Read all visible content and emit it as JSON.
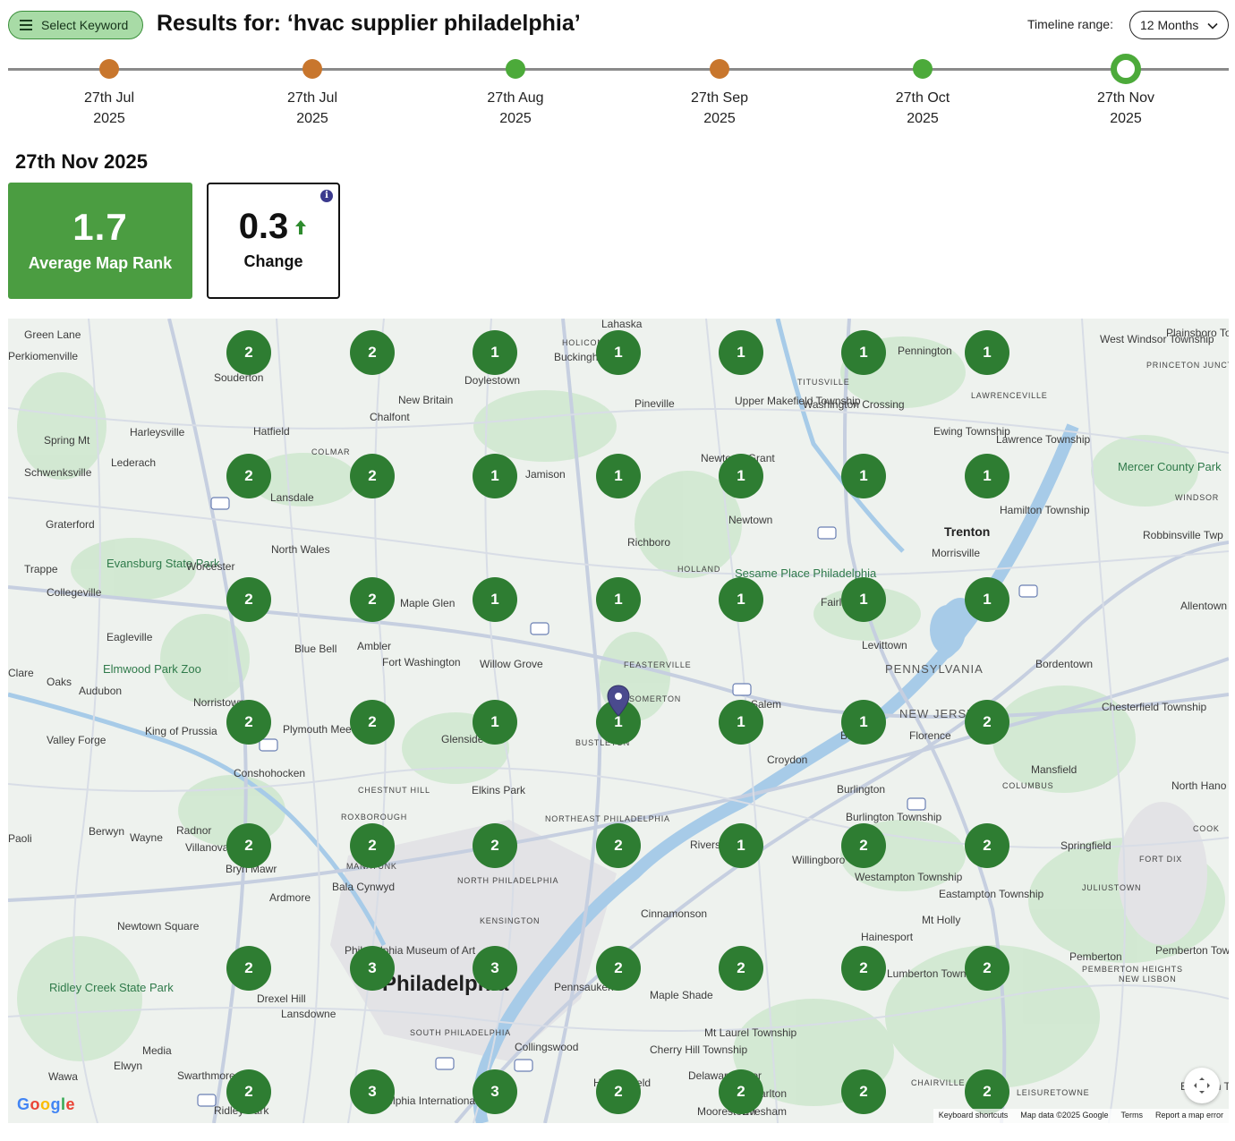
{
  "header": {
    "select_keyword_label": "Select Keyword",
    "title": "Results for: ‘hvac supplier philadelphia’",
    "timeline_range_label": "Timeline range:",
    "timeline_range_value": "12 Months"
  },
  "timeline": [
    {
      "day": "27th Jul",
      "year": "2025",
      "status": "decline",
      "color": "#c8762d",
      "selected": false
    },
    {
      "day": "27th Jul",
      "year": "2025",
      "status": "decline",
      "color": "#c8762d",
      "selected": false
    },
    {
      "day": "27th Aug",
      "year": "2025",
      "status": "improve",
      "color": "#4caa3a",
      "selected": false
    },
    {
      "day": "27th Sep",
      "year": "2025",
      "status": "decline",
      "color": "#c8762d",
      "selected": false
    },
    {
      "day": "27th Oct",
      "year": "2025",
      "status": "improve",
      "color": "#4caa3a",
      "selected": true
    },
    {
      "day": "27th Nov",
      "year": "2025",
      "status": "improve",
      "color": "#4caa3a",
      "selected": true
    }
  ],
  "selected_date": "27th Nov 2025",
  "stats": {
    "average_map_rank": "1.7",
    "average_map_rank_label": "Average Map Rank",
    "change": "0.3",
    "change_label": "Change",
    "change_direction": "up",
    "change_color": "#2e8b2e",
    "info_icon": "i"
  },
  "colors": {
    "marker": "#2e7d32",
    "rank_card": "#4b9d41",
    "pin": "#4a4a8e"
  },
  "map": {
    "grid": [
      [
        2,
        2,
        1,
        1,
        1,
        1,
        1
      ],
      [
        2,
        2,
        1,
        1,
        1,
        1,
        1
      ],
      [
        2,
        2,
        1,
        1,
        1,
        1,
        1
      ],
      [
        2,
        2,
        1,
        1,
        1,
        1,
        2
      ],
      [
        2,
        2,
        2,
        2,
        1,
        2,
        2
      ],
      [
        2,
        3,
        3,
        2,
        2,
        2,
        2
      ],
      [
        2,
        3,
        3,
        2,
        2,
        2,
        2
      ]
    ],
    "places": [
      "Green Lane",
      "Perkiomenville",
      "Souderton",
      "Doylestown",
      "Buckingham",
      "New Britain",
      "Chalfont",
      "Pineville",
      "Upper Makefield Township",
      "Washington Crossing",
      "Pennington",
      "West Windsor Township",
      "Plainsboro Township",
      "Harleysville",
      "Hatfield",
      "Spring Mt",
      "Lederach",
      "Schwenksville",
      "Lansdale",
      "Jamison",
      "Newtown",
      "Ewing Township",
      "Lawrence Township",
      "Mercer County Park",
      "Graterford",
      "North Wales",
      "Richboro",
      "Trenton",
      "Morrisville",
      "Hamilton Township",
      "Robbinsville Twp",
      "Trappe",
      "Evansburg State Park",
      "Worcester",
      "Collegeville",
      "Maple Glen",
      "Sesame Place Philadelphia",
      "Allentown",
      "Eagleville",
      "Blue Bell",
      "Ambler",
      "Fort Washington",
      "Willow Grove",
      "Levittown",
      "Bordentown",
      "Clare",
      "Oaks",
      "Audubon",
      "Elmwood Park Zoo",
      "Norristown",
      "PENNSYLVANIA",
      "King of Prussia",
      "Valley Forge",
      "Plymouth Meeting",
      "Glenside",
      "Croydon",
      "Chesterfield Township",
      "Florence",
      "NEW JERSEY",
      "Conshohocken",
      "Elkins Park",
      "Mansfield",
      "Burlington",
      "North Hano",
      "Berwyn",
      "Wayne",
      "Radnor",
      "Villanova",
      "Paoli",
      "Bryn Mawr",
      "Burlington Township",
      "Willingboro",
      "Springfield",
      "Bala Cynwyd",
      "Westampton Township",
      "Ardmore",
      "Newtown Square",
      "Cinnamonson",
      "Eastampton Township",
      "Mt Holly",
      "Hainesport",
      "Philadelphia Museum of Art",
      "Philadelphia",
      "Pennsauken",
      "Maple Shade",
      "Lumberton Township",
      "Pemberton",
      "Pemberton Township",
      "Ridley Creek State Park",
      "Drexel Hill",
      "Lansdowne",
      "Mt Laurel Township",
      "Cherry Hill Township",
      "Collingswood",
      "Media",
      "Elwyn",
      "Wawa",
      "Swarthmore",
      "Ridley Park",
      "Philadelphia International Airport",
      "Evesham",
      "Delaware River",
      "HOLICONG",
      "TITUSVILLE",
      "LAWRENCEVILLE",
      "PRINCETON JUNCTION",
      "COLMAR",
      "WINDSOR",
      "HOLLAND",
      "FEASTERVILLE",
      "SOMERTON",
      "BUSTLETON",
      "CHESTNUT HILL",
      "ROXBOROUGH",
      "NORTHEAST PHILADELPHIA",
      "MANAYUNK",
      "NORTH PHILADELPHIA",
      "KENSINGTON",
      "SOUTH PHILADELPHIA",
      "COLUMBUS",
      "FORT DIX",
      "JULIUSTOWN",
      "PEMBERTON HEIGHTS",
      "NEW LISBON",
      "CHAIRVILLE",
      "LEISURETOWNE",
      "COOK",
      "Lahaska",
      "Fairless Hills",
      "Rivers",
      "Newtown Grant",
      "Salem",
      "Bristol",
      "Moorestown",
      "Haddonfield",
      "Marlton",
      "Brendan T. Byrne State Forest"
    ],
    "google_logo": "Google",
    "attribution": [
      "Keyboard shortcuts",
      "Map data ©2025 Google",
      "Terms",
      "Report a map error"
    ]
  }
}
